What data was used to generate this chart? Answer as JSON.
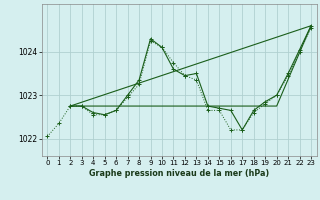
{
  "background_color": "#d5efef",
  "grid_color": "#b0d0d0",
  "line_color": "#1a5e1a",
  "title": "Graphe pression niveau de la mer (hPa)",
  "ylim": [
    1021.6,
    1025.1
  ],
  "yticks": [
    1022,
    1023,
    1024
  ],
  "xlim": [
    -0.5,
    23.5
  ],
  "xticks": [
    0,
    1,
    2,
    3,
    4,
    5,
    6,
    7,
    8,
    9,
    10,
    11,
    12,
    13,
    14,
    15,
    16,
    17,
    18,
    19,
    20,
    21,
    22,
    23
  ],
  "series": [
    {
      "x": [
        0,
        1,
        2,
        3,
        4,
        5,
        6,
        7,
        8,
        9,
        10,
        11,
        12,
        13,
        14,
        15,
        16,
        17,
        18,
        19,
        20,
        21,
        22,
        23
      ],
      "y": [
        1022.05,
        1022.35,
        1022.75,
        1022.75,
        1022.55,
        1022.55,
        1022.65,
        1022.95,
        1023.25,
        1024.25,
        1024.1,
        1023.75,
        1023.45,
        1023.35,
        1022.65,
        1022.65,
        1022.2,
        1022.2,
        1022.6,
        1022.8,
        1023.0,
        1023.45,
        1024.0,
        1024.55
      ],
      "linestyle": "dotted",
      "marker": "+"
    },
    {
      "x": [
        2,
        3,
        4,
        5,
        6,
        7,
        8,
        9,
        10,
        11,
        12,
        13,
        14,
        15,
        16,
        17,
        18,
        19,
        20,
        21,
        22,
        23
      ],
      "y": [
        1022.75,
        1022.75,
        1022.6,
        1022.55,
        1022.65,
        1023.0,
        1023.35,
        1024.3,
        1024.1,
        1023.6,
        1023.45,
        1023.5,
        1022.75,
        1022.7,
        1022.65,
        1022.2,
        1022.65,
        1022.85,
        1023.0,
        1023.5,
        1024.05,
        1024.6
      ],
      "linestyle": "solid",
      "marker": "+"
    },
    {
      "x": [
        2,
        23
      ],
      "y": [
        1022.75,
        1024.6
      ],
      "linestyle": "solid",
      "marker": null
    },
    {
      "x": [
        2,
        14,
        20,
        23
      ],
      "y": [
        1022.75,
        1022.75,
        1022.75,
        1024.6
      ],
      "linestyle": "solid",
      "marker": null
    }
  ]
}
